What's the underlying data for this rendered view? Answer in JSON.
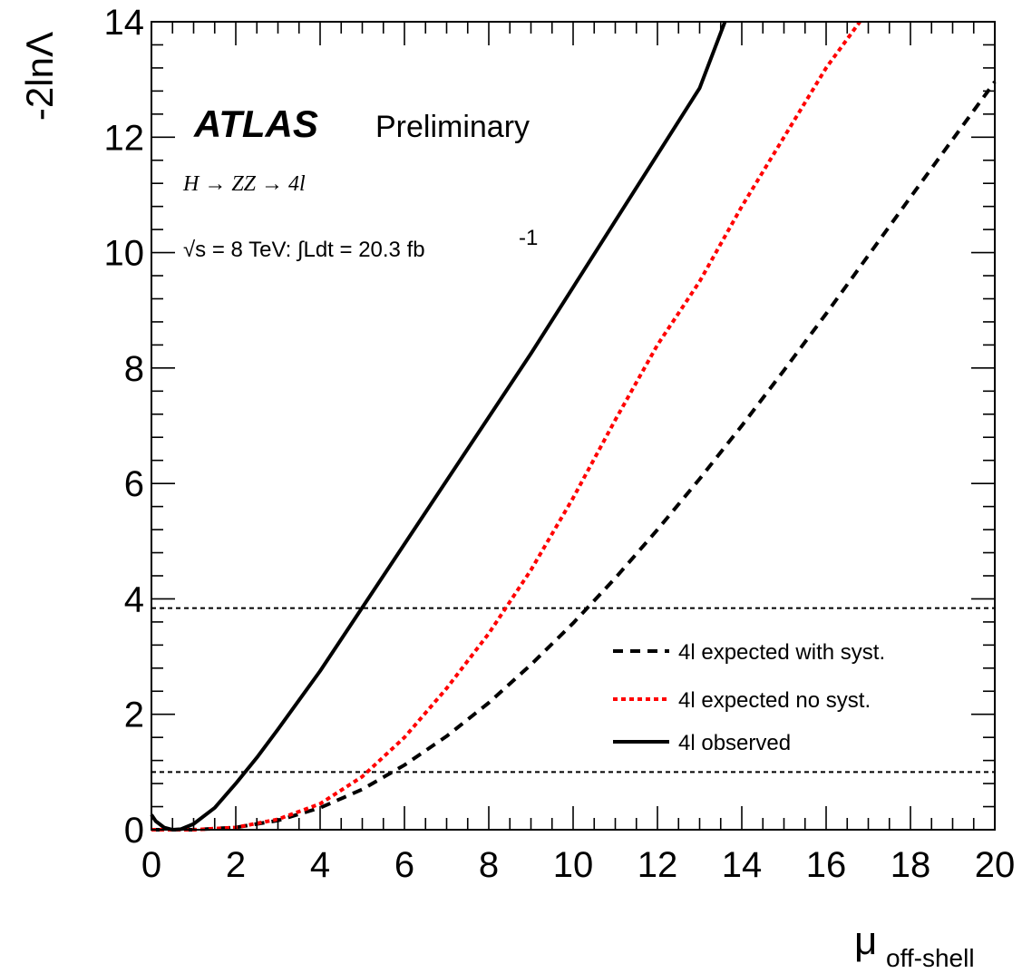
{
  "chart_data": {
    "type": "line",
    "xlabel": "μ",
    "xlabel_subscript": "off-shell",
    "ylabel": "-2lnΛ",
    "xlim": [
      0,
      20
    ],
    "ylim": [
      0,
      14
    ],
    "x_ticks": [
      0,
      2,
      4,
      6,
      8,
      10,
      12,
      14,
      16,
      18,
      20
    ],
    "y_ticks": [
      0,
      2,
      4,
      6,
      8,
      10,
      12,
      14
    ],
    "annotations": {
      "experiment": "ATLAS",
      "status": "Preliminary",
      "process": "H → ZZ → 4l",
      "energy": "√s = 8 TeV: ∫Ldt = 20.3 fb",
      "energy_exponent": "-1"
    },
    "reference_lines": [
      {
        "y": 3.84,
        "style": "dotted",
        "color": "#000000"
      },
      {
        "y": 1.0,
        "style": "dotted",
        "color": "#000000"
      }
    ],
    "legend_position": "bottom-right",
    "series": [
      {
        "name": "4l expected with syst.",
        "style": "dashed",
        "color": "#000000",
        "x": [
          0.0,
          0.5,
          1.0,
          2.0,
          3.0,
          4.0,
          5.0,
          6.0,
          7.0,
          8.0,
          9.0,
          10.0,
          11.0,
          12.0,
          13.0,
          14.0,
          15.0,
          16.0,
          17.0,
          18.0,
          19.0,
          20.0
        ],
        "y": [
          0.0,
          0.0,
          0.0,
          0.04,
          0.16,
          0.38,
          0.7,
          1.12,
          1.62,
          2.2,
          2.86,
          3.58,
          4.36,
          5.2,
          6.08,
          7.0,
          7.96,
          8.94,
          9.95,
          10.96,
          11.96,
          12.96
        ]
      },
      {
        "name": "4l expected no syst.",
        "style": "dotted",
        "color": "#ff0000",
        "x": [
          0.0,
          0.5,
          1.0,
          2.0,
          3.0,
          4.0,
          5.0,
          6.0,
          7.0,
          8.0,
          9.0,
          10.0,
          11.0,
          12.0,
          13.0,
          14.0,
          15.0,
          16.0,
          16.8
        ],
        "y": [
          0.0,
          0.0,
          0.0,
          0.04,
          0.18,
          0.45,
          0.92,
          1.6,
          2.45,
          3.4,
          4.5,
          5.75,
          7.1,
          8.4,
          9.5,
          10.8,
          12.0,
          13.2,
          14.0
        ]
      },
      {
        "name": "4l observed",
        "style": "solid",
        "color": "#000000",
        "x": [
          0.0,
          0.1,
          0.3,
          0.5,
          0.7,
          1.0,
          1.5,
          2.0,
          2.5,
          3.0,
          4.0,
          5.0,
          6.0,
          7.0,
          8.0,
          9.0,
          10.0,
          11.0,
          12.0,
          13.0,
          13.6
        ],
        "y": [
          0.26,
          0.15,
          0.04,
          0.0,
          0.01,
          0.1,
          0.38,
          0.8,
          1.25,
          1.74,
          2.75,
          3.85,
          4.95,
          6.05,
          7.15,
          8.25,
          9.4,
          10.55,
          11.7,
          12.85,
          14.0
        ]
      }
    ]
  }
}
